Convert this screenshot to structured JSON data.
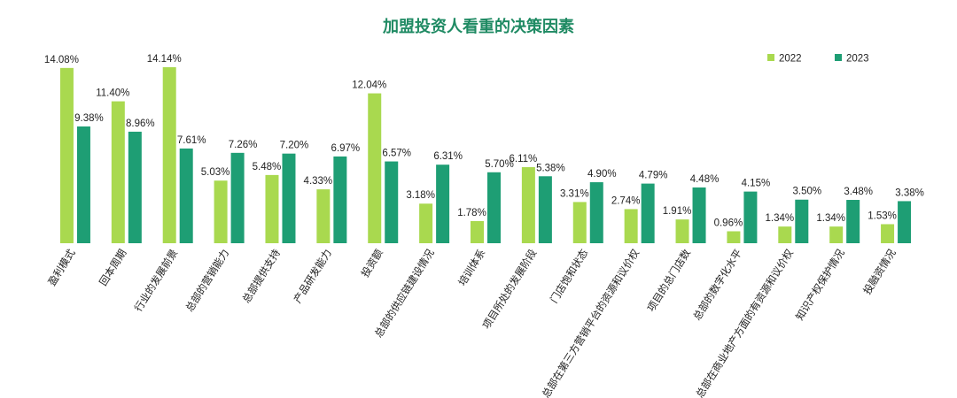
{
  "chart_data": {
    "type": "bar",
    "title": "加盟投资人看重的决策因素",
    "categories": [
      "盈利模式",
      "回本周期",
      "行业的发展前景",
      "总部的营销能力",
      "总部提供支持",
      "产品研发能力",
      "投资额",
      "总部的供应链建设情况",
      "培训体系",
      "项目所处的发展阶段",
      "门店饱和状态",
      "总部在第三方营销平台的资源和议价权",
      "项目的总门店数",
      "总部的数字化水平",
      "总部在商业地产方面的有资源和议价权",
      "知识产权保护情况",
      "投融资情况"
    ],
    "series": [
      {
        "name": "2022",
        "color": "#a9d94f",
        "values": [
          14.08,
          11.4,
          14.14,
          5.03,
          5.48,
          4.33,
          12.04,
          3.18,
          1.78,
          6.11,
          3.31,
          2.74,
          1.91,
          0.96,
          1.34,
          1.34,
          1.53
        ],
        "value_labels": [
          "14.08%",
          "11.40%",
          "14.14%",
          "5.03%",
          "5.48%",
          "4.33%",
          "12.04%",
          "3.18%",
          "1.78%",
          "6.11%",
          "3.31%",
          "2.74%",
          "1.91%",
          "0.96%",
          "1.34%",
          "1.34%",
          "1.53%"
        ]
      },
      {
        "name": "2023",
        "color": "#1e9e74",
        "values": [
          9.38,
          8.96,
          7.61,
          7.26,
          7.2,
          6.97,
          6.57,
          6.31,
          5.7,
          5.38,
          4.9,
          4.79,
          4.48,
          4.15,
          3.5,
          3.48,
          3.38
        ],
        "value_labels": [
          "9.38%",
          "8.96%",
          "7.61%",
          "7.26%",
          "7.20%",
          "6.97%",
          "6.57%",
          "6.31%",
          "5.70%",
          "5.38%",
          "4.90%",
          "4.79%",
          "4.48%",
          "4.15%",
          "3.50%",
          "3.48%",
          "3.38%"
        ]
      }
    ],
    "legend": "top-right"
  }
}
